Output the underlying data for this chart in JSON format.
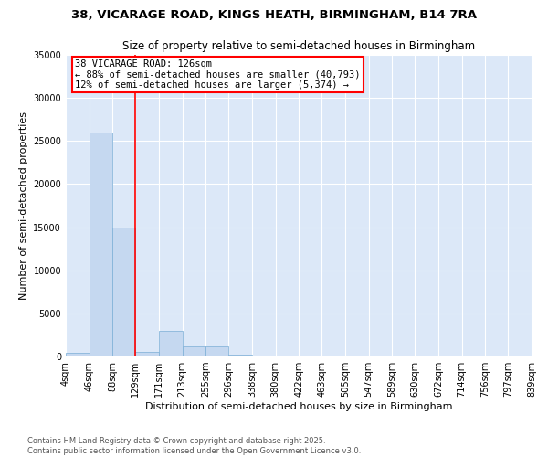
{
  "title": "38, VICARAGE ROAD, KINGS HEATH, BIRMINGHAM, B14 7RA",
  "subtitle": "Size of property relative to semi-detached houses in Birmingham",
  "xlabel": "Distribution of semi-detached houses by size in Birmingham",
  "ylabel": "Number of semi-detached properties",
  "bin_labels": [
    "4sqm",
    "46sqm",
    "88sqm",
    "129sqm",
    "171sqm",
    "213sqm",
    "255sqm",
    "296sqm",
    "338sqm",
    "380sqm",
    "422sqm",
    "463sqm",
    "505sqm",
    "547sqm",
    "589sqm",
    "630sqm",
    "672sqm",
    "714sqm",
    "756sqm",
    "797sqm",
    "839sqm"
  ],
  "bin_edges": [
    4,
    46,
    88,
    129,
    171,
    213,
    255,
    296,
    338,
    380,
    422,
    463,
    505,
    547,
    589,
    630,
    672,
    714,
    756,
    797,
    839
  ],
  "bar_heights": [
    400,
    26000,
    15000,
    500,
    3000,
    1200,
    1200,
    200,
    100,
    50,
    30,
    20,
    10,
    5,
    5,
    5,
    5,
    5,
    5,
    5
  ],
  "bar_color": "#c5d8f0",
  "bar_edge_color": "#7aaed6",
  "vline_x": 129,
  "vline_color": "red",
  "annotation_text": "38 VICARAGE ROAD: 126sqm\n← 88% of semi-detached houses are smaller (40,793)\n12% of semi-detached houses are larger (5,374) →",
  "annotation_box_color": "white",
  "annotation_box_edge_color": "red",
  "ylim": [
    0,
    35000
  ],
  "yticks": [
    0,
    5000,
    10000,
    15000,
    20000,
    25000,
    30000,
    35000
  ],
  "bg_color": "#dce8f8",
  "footer_text": "Contains HM Land Registry data © Crown copyright and database right 2025.\nContains public sector information licensed under the Open Government Licence v3.0.",
  "title_fontsize": 9.5,
  "subtitle_fontsize": 8.5,
  "axis_label_fontsize": 8,
  "tick_fontsize": 7,
  "annotation_fontsize": 7.5,
  "footer_fontsize": 6
}
